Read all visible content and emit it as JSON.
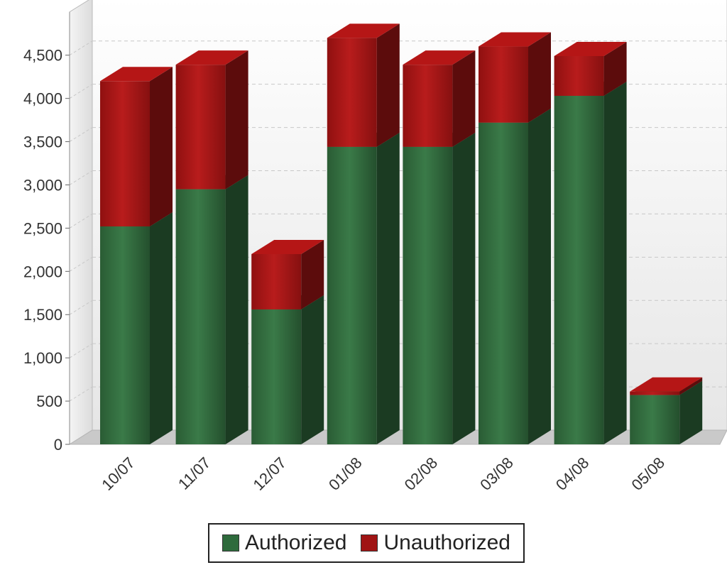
{
  "chart_data": {
    "type": "bar",
    "stacked": true,
    "style": "3d",
    "categories": [
      "10/07",
      "11/07",
      "12/07",
      "01/08",
      "02/08",
      "03/08",
      "04/08",
      "05/08"
    ],
    "series": [
      {
        "name": "Authorized",
        "values": [
          2520,
          2950,
          1560,
          3440,
          3440,
          3720,
          4030,
          570
        ],
        "color": "#2e6b3c"
      },
      {
        "name": "Unauthorized",
        "values": [
          1680,
          1440,
          640,
          1260,
          950,
          880,
          460,
          40
        ],
        "color": "#a01414"
      }
    ],
    "ylim": [
      0,
      5000
    ],
    "yticks": [
      0,
      500,
      1000,
      1500,
      2000,
      2500,
      3000,
      3500,
      4000,
      4500
    ],
    "ytick_labels": [
      "0",
      "500",
      "1,000",
      "1,500",
      "2,000",
      "2,500",
      "3,000",
      "3,500",
      "4,000",
      "4,500"
    ],
    "grid": true,
    "legend_position": "bottom"
  }
}
